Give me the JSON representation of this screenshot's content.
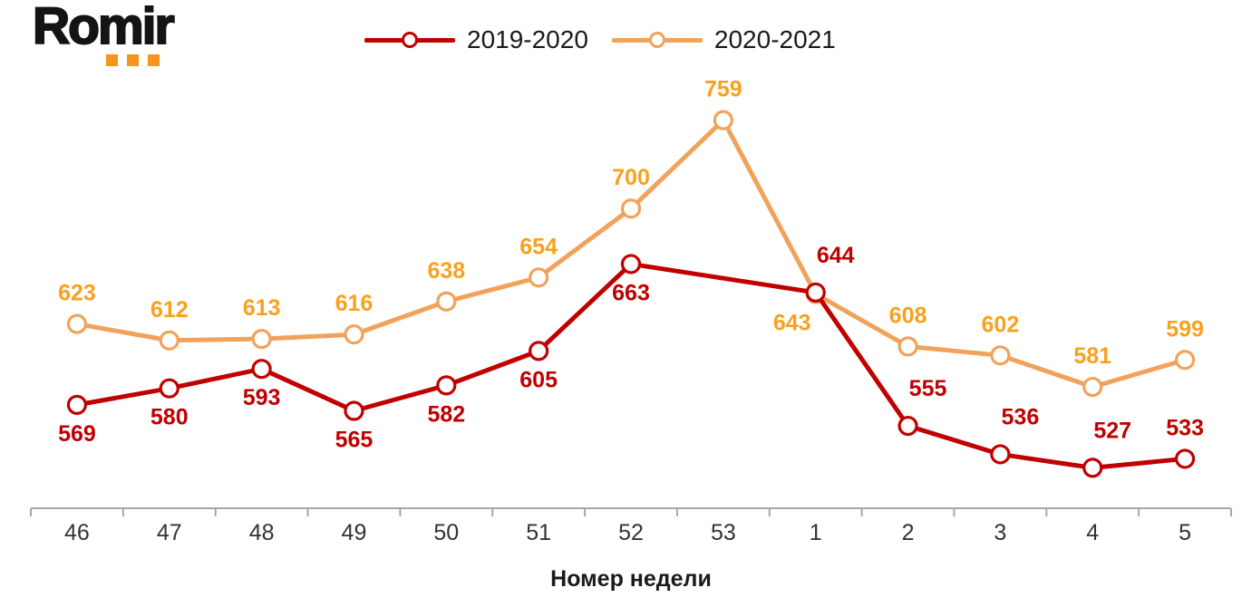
{
  "logo": {
    "text": "Romir",
    "dot_color": "#F7941E"
  },
  "chart_data": {
    "type": "line",
    "title": "",
    "xlabel": "Номер недели",
    "ylabel": "",
    "categories": [
      "46",
      "47",
      "48",
      "49",
      "50",
      "51",
      "52",
      "53",
      "1",
      "2",
      "3",
      "4",
      "5"
    ],
    "ylim": [
      500,
      760
    ],
    "grid": false,
    "legend_position": "top",
    "axis_color": "#A6A6A6",
    "category_label_color": "#333333",
    "series": [
      {
        "name": "2019-2020",
        "color": "#C00000",
        "label_color": "#C00000",
        "x_idx": [
          0,
          1,
          2,
          3,
          4,
          5,
          6,
          8,
          9,
          10,
          11,
          12
        ],
        "values": [
          569,
          580,
          593,
          565,
          582,
          605,
          663,
          644,
          555,
          536,
          527,
          533
        ],
        "label_pos": [
          "below",
          "below",
          "below",
          "below",
          "below",
          "below",
          "below",
          "above-right",
          "above-right",
          "above-right",
          "above-right",
          "above"
        ]
      },
      {
        "name": "2020-2021",
        "color": "#F1A25B",
        "label_color": "#F9A11E",
        "x_idx": [
          0,
          1,
          2,
          3,
          4,
          5,
          6,
          7,
          8,
          9,
          10,
          11,
          12
        ],
        "values": [
          623,
          612,
          613,
          616,
          638,
          654,
          700,
          759,
          643,
          608,
          602,
          581,
          599
        ],
        "label_pos": [
          "above",
          "above",
          "above",
          "above",
          "above",
          "above",
          "above",
          "above",
          "below-left",
          "above",
          "above",
          "above",
          "above"
        ]
      }
    ]
  }
}
